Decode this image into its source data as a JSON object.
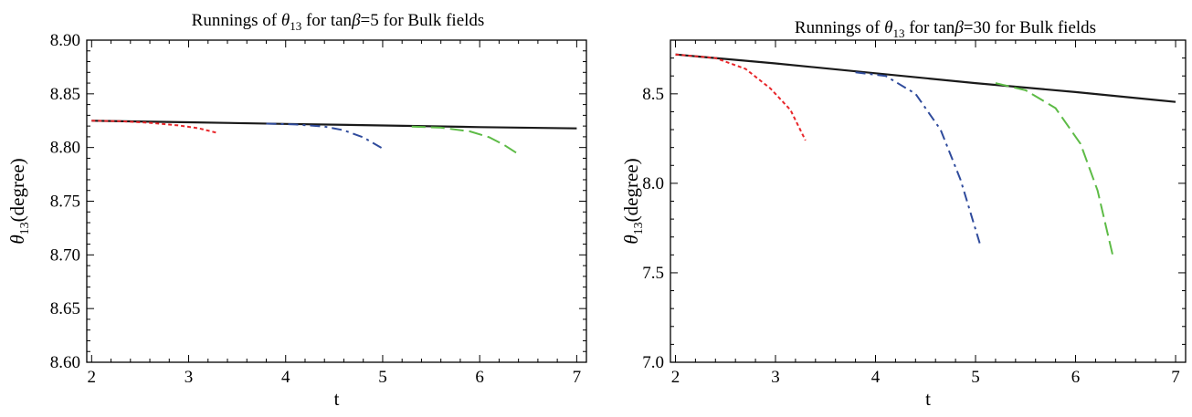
{
  "chart_data": [
    {
      "type": "line",
      "title": {
        "prefix": "Runnings of ",
        "sym": "θ",
        "sub": "13",
        "mid": " for tan",
        "beta": "β",
        "suffix": "=5 for Bulk fields"
      },
      "xlabel": "t",
      "ylabel": {
        "sym": "θ",
        "sub": "13",
        "rest": "(degree)"
      },
      "xlim": [
        1.95,
        7.1
      ],
      "ylim": [
        8.6,
        8.9
      ],
      "xticks": [
        "2",
        "3",
        "4",
        "5",
        "6",
        "7"
      ],
      "yticks": [
        "8.60",
        "8.65",
        "8.70",
        "8.75",
        "8.80",
        "8.85",
        "8.90"
      ],
      "grid": false,
      "series": [
        {
          "color": "#1a1a1a",
          "style": "solid",
          "x": [
            2.0,
            3.0,
            4.0,
            5.0,
            6.0,
            7.0
          ],
          "y": [
            8.825,
            8.8235,
            8.822,
            8.8205,
            8.819,
            8.8178
          ]
        },
        {
          "color": "#e8262a",
          "style": "dotted",
          "x": [
            2.0,
            2.3,
            2.6,
            2.9,
            3.1,
            3.3
          ],
          "y": [
            8.825,
            8.8245,
            8.823,
            8.8205,
            8.818,
            8.8135
          ]
        },
        {
          "color": "#2f4b9c",
          "style": "dashdot",
          "x": [
            3.8,
            4.1,
            4.4,
            4.6,
            4.8,
            5.0
          ],
          "y": [
            8.8222,
            8.8215,
            8.8195,
            8.816,
            8.8095,
            8.799
          ]
        },
        {
          "color": "#5dbb46",
          "style": "dashed",
          "x": [
            5.3,
            5.6,
            5.9,
            6.1,
            6.25,
            6.38
          ],
          "y": [
            8.8195,
            8.8185,
            8.815,
            8.8095,
            8.8025,
            8.795
          ]
        }
      ]
    },
    {
      "type": "line",
      "title": {
        "prefix": "Runnings of ",
        "sym": "θ",
        "sub": "13",
        "mid": " for tan",
        "beta": "β",
        "suffix": "=30 for Bulk fields"
      },
      "xlabel": "t",
      "ylabel": {
        "sym": "θ",
        "sub": "13",
        "rest": "(degree)"
      },
      "xlim": [
        1.95,
        7.1
      ],
      "ylim": [
        7.0,
        8.8
      ],
      "xticks": [
        "2",
        "3",
        "4",
        "5",
        "6",
        "7"
      ],
      "yticks": [
        "7.0",
        "7.5",
        "8.0",
        "8.5"
      ],
      "grid": false,
      "series": [
        {
          "color": "#1a1a1a",
          "style": "solid",
          "x": [
            2.0,
            3.0,
            4.0,
            5.0,
            6.0,
            7.0
          ],
          "y": [
            8.72,
            8.67,
            8.615,
            8.56,
            8.51,
            8.455
          ]
        },
        {
          "color": "#e8262a",
          "style": "dotted",
          "x": [
            2.0,
            2.4,
            2.7,
            2.95,
            3.15,
            3.3
          ],
          "y": [
            8.72,
            8.7,
            8.64,
            8.53,
            8.41,
            8.24
          ]
        },
        {
          "color": "#2f4b9c",
          "style": "dashdot",
          "x": [
            3.8,
            4.1,
            4.4,
            4.65,
            4.85,
            5.05
          ],
          "y": [
            8.62,
            8.6,
            8.5,
            8.3,
            8.02,
            7.65
          ]
        },
        {
          "color": "#5dbb46",
          "style": "dashed",
          "x": [
            5.2,
            5.5,
            5.8,
            6.05,
            6.22,
            6.37
          ],
          "y": [
            8.56,
            8.52,
            8.42,
            8.22,
            7.96,
            7.6
          ]
        }
      ]
    }
  ]
}
